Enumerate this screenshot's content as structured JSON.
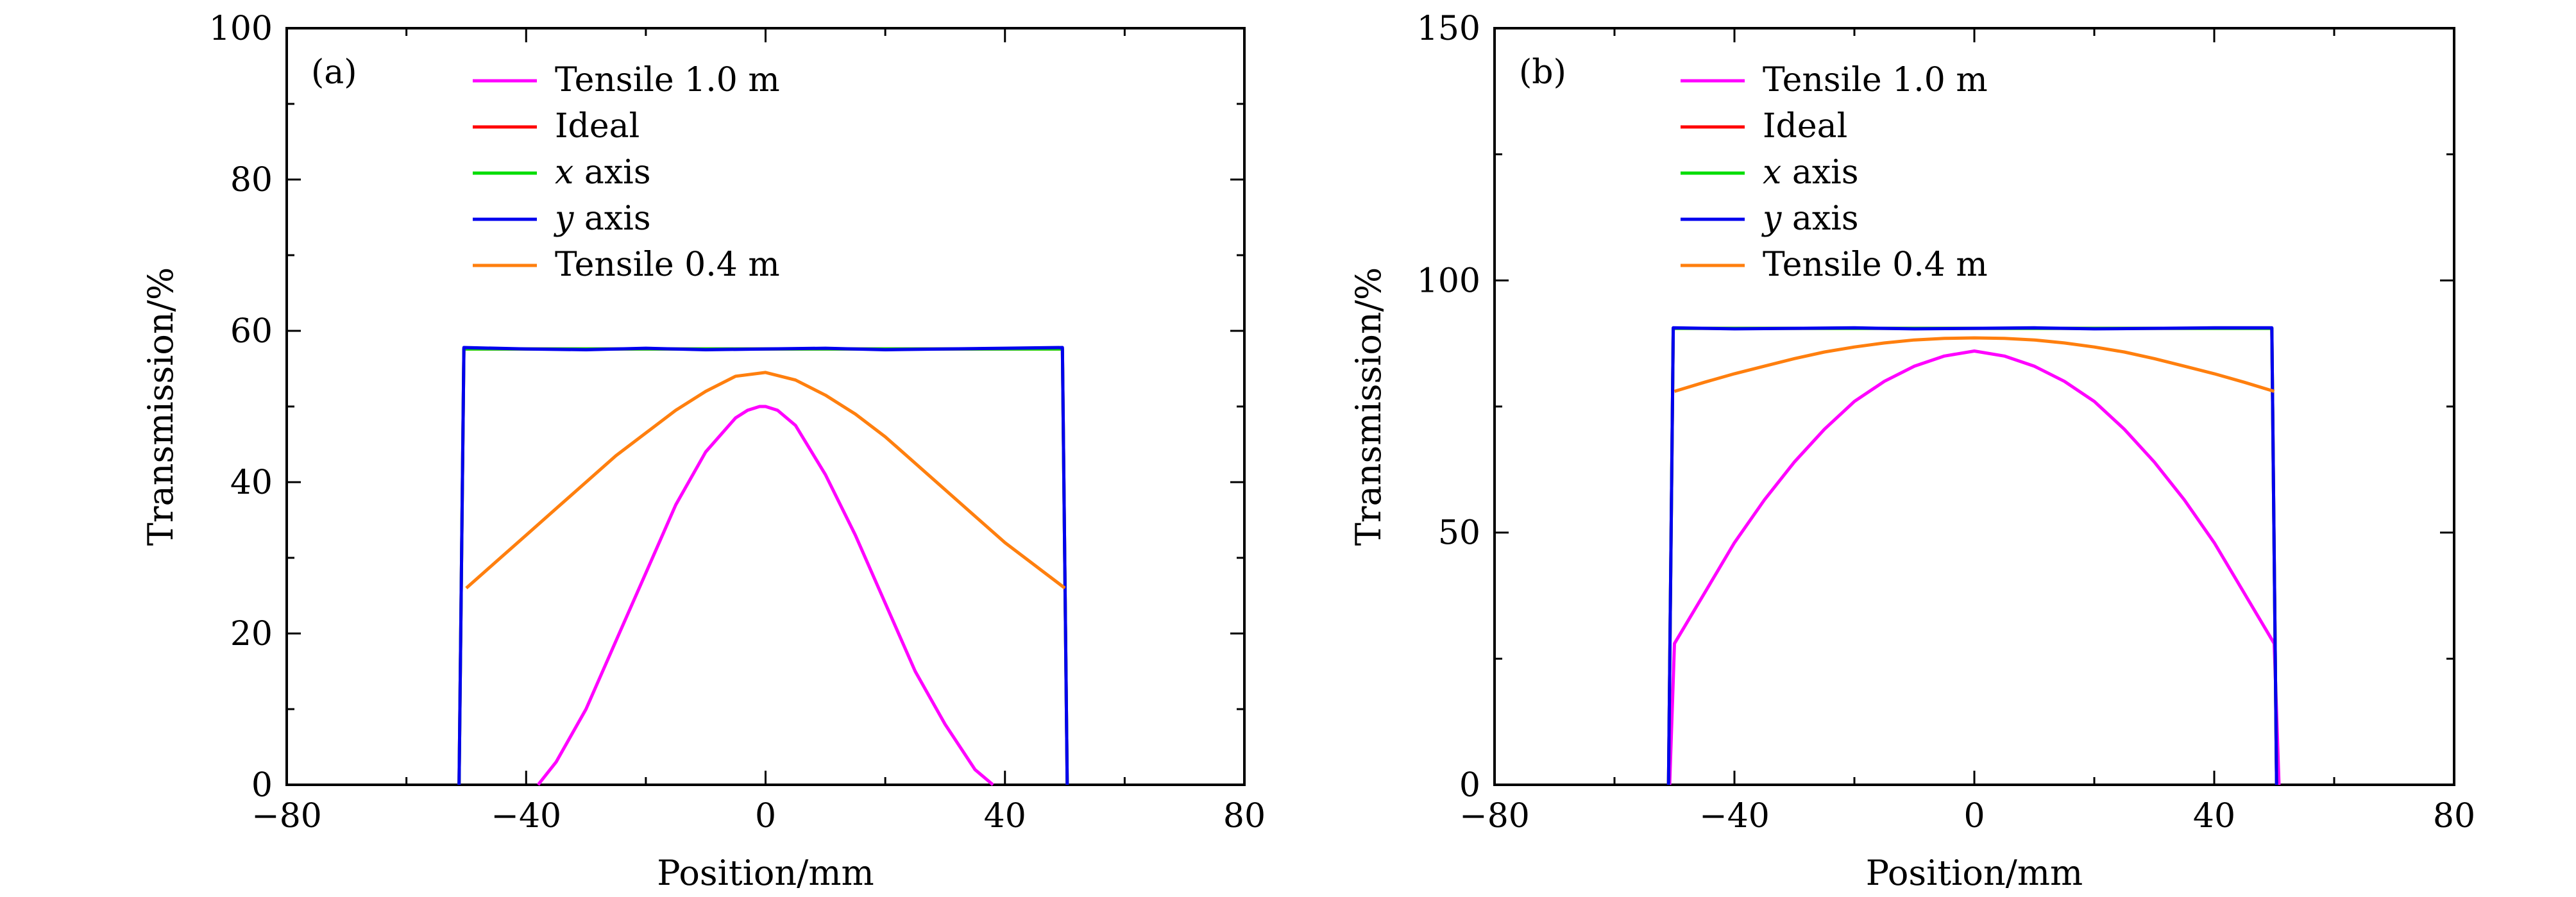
{
  "chart_data": [
    {
      "type": "line",
      "panel_label": "(a)",
      "xlabel": "Position/mm",
      "ylabel": "Transmission/%",
      "xlim": [
        -80,
        80
      ],
      "ylim": [
        0,
        100
      ],
      "x_ticks": [
        -80,
        -40,
        0,
        40,
        80
      ],
      "x_tick_labels": [
        "−80",
        "−40",
        "0",
        "40",
        "80"
      ],
      "y_ticks": [
        0,
        20,
        40,
        60,
        80,
        100
      ],
      "y_tick_labels": [
        "0",
        "20",
        "40",
        "60",
        "80",
        "100"
      ],
      "grid": false,
      "legend_position": "top-center",
      "series": [
        {
          "name": "Tensile 1.0 m",
          "color": "#ff00ff",
          "x": [
            -38,
            -35,
            -30,
            -25,
            -20,
            -15,
            -10,
            -5,
            -3,
            -1,
            0,
            2,
            5,
            10,
            15,
            20,
            25,
            30,
            35,
            38
          ],
          "y": [
            0,
            3,
            10,
            19,
            28,
            37,
            44,
            48.5,
            49.5,
            50,
            50,
            49.5,
            47.5,
            41,
            33,
            24,
            15,
            8,
            2,
            0
          ]
        },
        {
          "name": "Ideal",
          "color": "#ff0000",
          "x": [
            -51.2,
            -50.4,
            49.6,
            50.4
          ],
          "y": [
            0,
            57.6,
            57.6,
            0
          ]
        },
        {
          "name": "x axis",
          "color": "#00dd00",
          "x": [
            -51.2,
            -50.4,
            49.6,
            50.4
          ],
          "y": [
            0,
            57.6,
            57.6,
            0
          ]
        },
        {
          "name": "y axis",
          "color": "#0000ee",
          "x": [
            -51.2,
            -50.4,
            -40,
            -30,
            -20,
            -10,
            0,
            10,
            20,
            30,
            40,
            49.6,
            50.4
          ],
          "y": [
            0,
            57.8,
            57.6,
            57.5,
            57.7,
            57.5,
            57.6,
            57.7,
            57.5,
            57.6,
            57.7,
            57.8,
            0
          ]
        },
        {
          "name": "Tensile 0.4 m",
          "color": "#ff7f0e",
          "x": [
            -50,
            -45,
            -40,
            -35,
            -30,
            -25,
            -20,
            -15,
            -10,
            -5,
            0,
            5,
            10,
            15,
            20,
            25,
            30,
            35,
            40,
            45,
            50
          ],
          "y": [
            26,
            29.5,
            33,
            36.5,
            40,
            43.5,
            46.5,
            49.5,
            52,
            54,
            54.5,
            53.5,
            51.5,
            49,
            46,
            42.5,
            39,
            35.5,
            32,
            29,
            26
          ]
        }
      ]
    },
    {
      "type": "line",
      "panel_label": "(b)",
      "xlabel": "Position/mm",
      "ylabel": "Transmission/%",
      "xlim": [
        -80,
        80
      ],
      "ylim": [
        0,
        150
      ],
      "x_ticks": [
        -80,
        -40,
        0,
        40,
        80
      ],
      "x_tick_labels": [
        "−80",
        "−40",
        "0",
        "40",
        "80"
      ],
      "y_ticks": [
        0,
        50,
        100,
        150
      ],
      "y_tick_labels": [
        "0",
        "50",
        "100",
        "150"
      ],
      "grid": false,
      "legend_position": "top-center",
      "series": [
        {
          "name": "Tensile 1.0 m",
          "color": "#ff00ff",
          "x": [
            -50.8,
            -50,
            -45,
            -40,
            -35,
            -30,
            -25,
            -20,
            -15,
            -10,
            -5,
            0,
            5,
            10,
            15,
            20,
            25,
            30,
            35,
            40,
            45,
            50,
            50.8
          ],
          "y": [
            0,
            28,
            38,
            48,
            56.5,
            64,
            70.5,
            76,
            80,
            83,
            85,
            86,
            85,
            83,
            80,
            76,
            70.5,
            64,
            56.5,
            48,
            38,
            28,
            0
          ]
        },
        {
          "name": "Ideal",
          "color": "#ff0000",
          "x": [
            -51,
            -50.2,
            49.6,
            50.4
          ],
          "y": [
            0,
            90.5,
            90.5,
            0
          ]
        },
        {
          "name": "x axis",
          "color": "#00dd00",
          "x": [
            -51,
            -50.2,
            49.6,
            50.4
          ],
          "y": [
            0,
            90.5,
            90.5,
            0
          ]
        },
        {
          "name": "y axis",
          "color": "#0000ee",
          "x": [
            -51,
            -50.2,
            -40,
            -30,
            -20,
            -10,
            0,
            10,
            20,
            30,
            40,
            49.6,
            50.4
          ],
          "y": [
            0,
            90.6,
            90.4,
            90.5,
            90.6,
            90.4,
            90.5,
            90.6,
            90.4,
            90.5,
            90.6,
            90.6,
            0
          ]
        },
        {
          "name": "Tensile 0.4 m",
          "color": "#ff7f0e",
          "x": [
            -50,
            -45,
            -40,
            -35,
            -30,
            -25,
            -20,
            -15,
            -10,
            -5,
            0,
            5,
            10,
            15,
            20,
            25,
            30,
            35,
            40,
            45,
            50
          ],
          "y": [
            78,
            79.8,
            81.5,
            83,
            84.5,
            85.8,
            86.8,
            87.6,
            88.2,
            88.5,
            88.6,
            88.5,
            88.2,
            87.6,
            86.8,
            85.8,
            84.5,
            83,
            81.5,
            79.8,
            78
          ]
        }
      ]
    }
  ]
}
